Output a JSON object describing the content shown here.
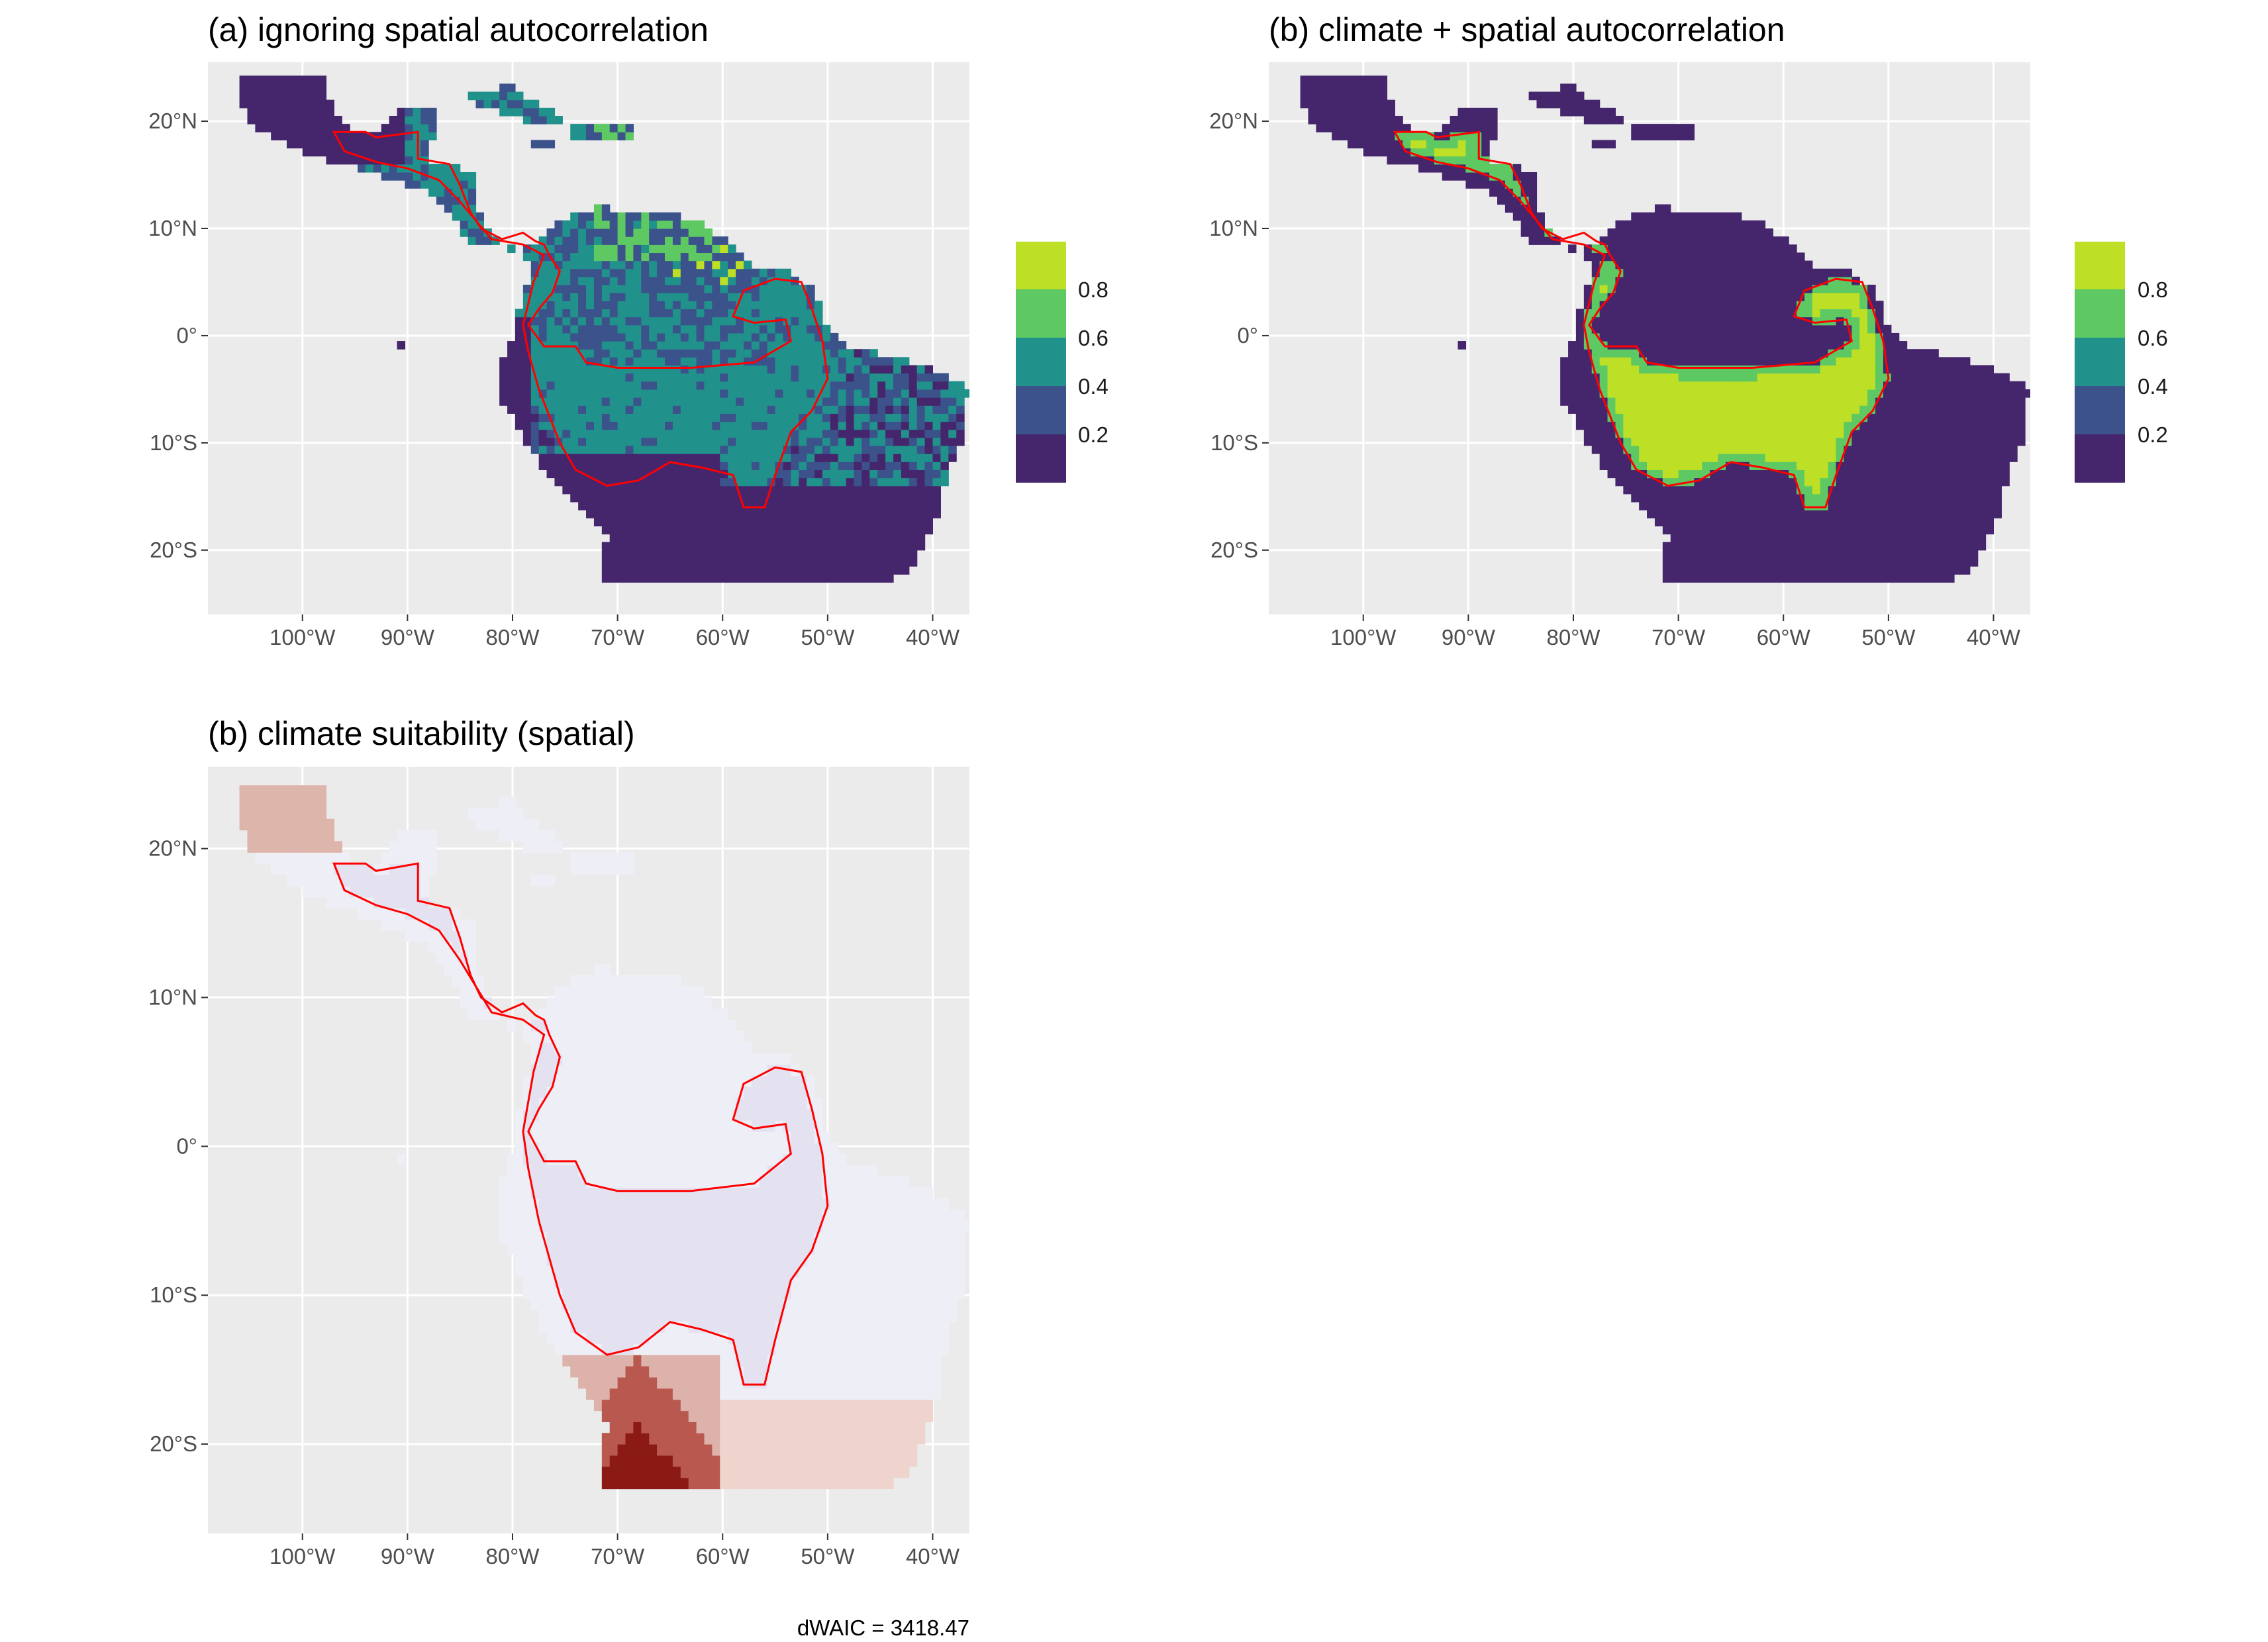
{
  "panels": [
    {
      "id": "a",
      "title": "(a) ignoring spatial autocorrelation",
      "fill_mode": "suitability",
      "legend": true
    },
    {
      "id": "b",
      "title": "(b) climate + spatial autocorrelation",
      "fill_mode": "binary",
      "legend": true
    },
    {
      "id": "c",
      "title": "(b) climate suitability (spatial)",
      "fill_mode": "difference",
      "legend": false
    }
  ],
  "axes": {
    "x_ticks": [
      "100°W",
      "90°W",
      "80°W",
      "70°W",
      "60°W",
      "50°W",
      "40°W"
    ],
    "x_values": [
      -100,
      -90,
      -80,
      -70,
      -60,
      -50,
      -40
    ],
    "y_ticks": [
      "20°N",
      "10°N",
      "0°",
      "10°S",
      "20°S"
    ],
    "y_values": [
      20,
      10,
      0,
      -10,
      -20
    ],
    "lon_range": [
      -109,
      -36.5
    ],
    "lat_range": [
      -26,
      25.5
    ]
  },
  "legend": {
    "labels": [
      "0.8",
      "0.6",
      "0.4",
      "0.2"
    ],
    "bins": [
      {
        "color": "#bddf26",
        "label": "0.8"
      },
      {
        "color": "#5ec962",
        "label": "0.6"
      },
      {
        "color": "#21918c",
        "label": "0.4"
      },
      {
        "color": "#3b528b",
        "label": "0.2"
      },
      {
        "color": "#45266d",
        "label": ""
      }
    ]
  },
  "colors": {
    "panel_background": "#ebebeb",
    "gridline": "#ffffff",
    "range_outline": "#ff0000",
    "low_suitability": "#45266d",
    "mid_suitability": "#21918c",
    "high_suitability": "#bddf26",
    "diff_negative": "#e6e4f2",
    "diff_positive": "#8b1a14"
  },
  "footnote": "dWAIC = 3418.47"
}
